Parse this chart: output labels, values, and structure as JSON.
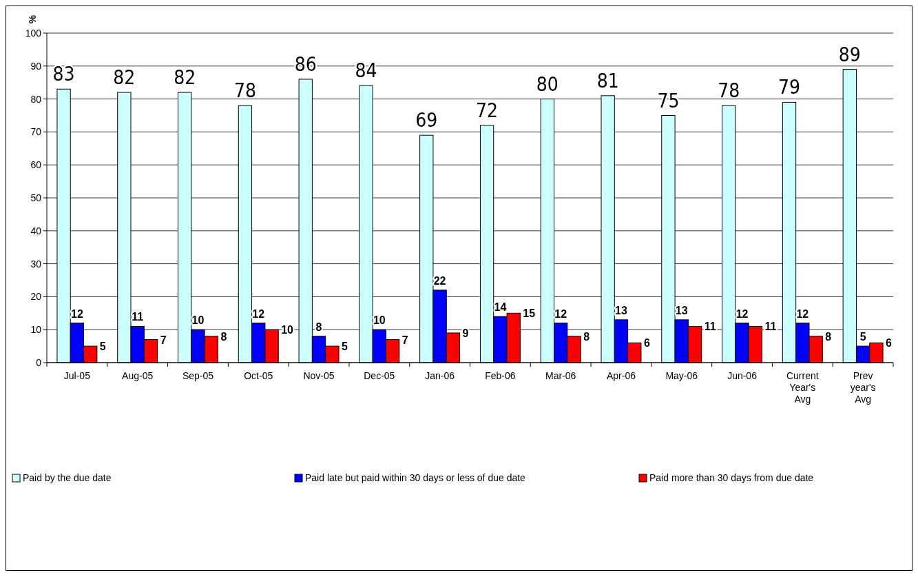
{
  "chart_data": {
    "type": "bar",
    "ylabel": "%",
    "categories": [
      "Jul-05",
      "Aug-05",
      "Sep-05",
      "Oct-05",
      "Nov-05",
      "Dec-05",
      "Jan-06",
      "Feb-06",
      "Mar-06",
      "Apr-06",
      "May-06",
      "Jun-06",
      "Current Year's Avg",
      "Prev year's Avg"
    ],
    "series": [
      {
        "name": "Paid by the due date",
        "color": "#ccffff",
        "values": [
          83,
          82,
          82,
          78,
          86,
          84,
          69,
          72,
          80,
          81,
          75,
          78,
          79,
          89
        ]
      },
      {
        "name": "Paid late but paid within 30 days or less of due date",
        "color": "#0000ff",
        "values": [
          12,
          11,
          10,
          12,
          8,
          10,
          22,
          14,
          12,
          13,
          13,
          12,
          12,
          5
        ]
      },
      {
        "name": "Paid more than 30 days from due date",
        "color": "#ff0000",
        "values": [
          5,
          7,
          8,
          10,
          5,
          7,
          9,
          15,
          8,
          6,
          11,
          11,
          8,
          6
        ]
      }
    ],
    "ylim": [
      0,
      100
    ],
    "yticks": [
      0,
      10,
      20,
      30,
      40,
      50,
      60,
      70,
      80,
      90,
      100
    ],
    "grid": "y",
    "legend": "bottom",
    "data_labels": true
  }
}
